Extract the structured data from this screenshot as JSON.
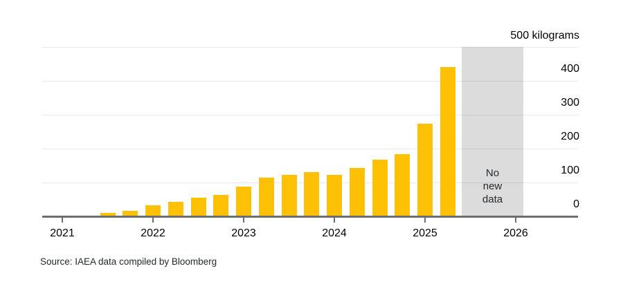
{
  "chart_data": {
    "type": "bar",
    "unit_label": "500 kilograms",
    "ylabel": "kilograms",
    "ylim": [
      0,
      500
    ],
    "y_ticks": [
      0,
      100,
      200,
      300,
      400
    ],
    "y_gridlines": [
      100,
      200,
      300,
      400,
      500
    ],
    "x_ticks": [
      "2021",
      "2022",
      "2023",
      "2024",
      "2025",
      "2026"
    ],
    "bars_per_year": 4,
    "values": [
      2,
      3,
      10,
      17,
      32,
      42,
      55,
      63,
      87,
      115,
      122,
      130,
      122,
      143,
      167,
      183,
      274,
      441,
      1,
      1,
      1
    ],
    "no_data_band": {
      "lines": [
        "No",
        "new",
        "data"
      ],
      "start_bar_index": 18,
      "end_bar_index": 20
    },
    "legend": "none",
    "grid": "horizontal",
    "colors": {
      "bar": "#ffc106",
      "band": "#dcdcdc",
      "axis": "#6d6d6d",
      "gridline": "#e3e3e3",
      "text": "#000000"
    }
  },
  "source_line": "Source: IAEA data compiled by Bloomberg"
}
